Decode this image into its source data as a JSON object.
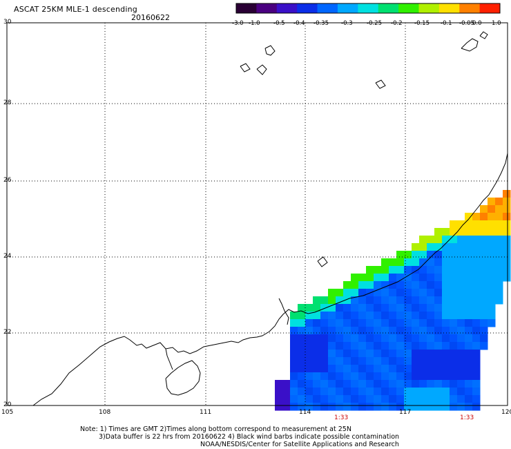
{
  "header": {
    "title": "ASCAT 25KM MLE-1 descending",
    "date": "20160622"
  },
  "colorbar": {
    "ticks": [
      "-3.0",
      "-1.0",
      "-0.5",
      "-0.4",
      "-0.35",
      "-0.3",
      "-0.25",
      "-0.2",
      "-0.15",
      "-0.1",
      "-0.05",
      "0.0",
      "1.0"
    ],
    "colors": [
      "#2a0034",
      "#4a0080",
      "#3a10c8",
      "#0b2ee8",
      "#0066ff",
      "#00a8ff",
      "#00e0e0",
      "#00e070",
      "#30f000",
      "#b0f000",
      "#ffe000",
      "#ff8000",
      "#ff2000"
    ]
  },
  "axes": {
    "lat_ticks": [
      "30",
      "28",
      "26",
      "24",
      "22",
      "20"
    ],
    "lon_ticks": [
      "105",
      "108",
      "111",
      "114",
      "117",
      "120"
    ],
    "lat_range": [
      20,
      30
    ],
    "lon_range": [
      105,
      120
    ]
  },
  "pass_times": [
    "1:33",
    "1:33"
  ],
  "notes": {
    "line1": "Note: 1) Times are GMT 2)Times along bottom correspond to measurement at 25N",
    "line2": "3)Data buffer is 22 hrs from 20160622 4) Black wind barbs indicate possible contamination",
    "line3": "NOAA/NESDIS/Center for Satellite Applications and Research"
  }
}
